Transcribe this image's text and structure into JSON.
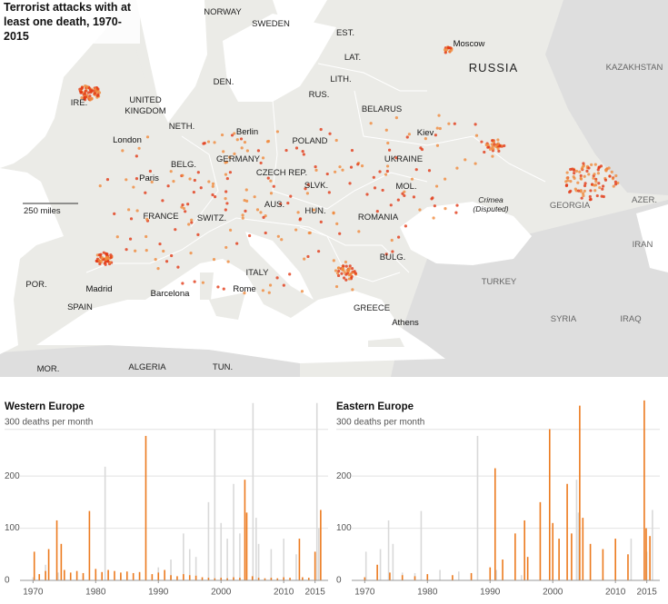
{
  "map": {
    "title": "Terrorist attacks with at least one death, 1970-2015",
    "scale": "250 miles",
    "labels": [
      "NORWAY",
      "SWEDEN",
      "EST.",
      "LAT.",
      "LITH.",
      "RUS.",
      "DEN.",
      "IRE.",
      "UNITED KINGDOM",
      "London",
      "NETH.",
      "Berlin",
      "POLAND",
      "BELARUS",
      "Moscow",
      "RUSSIA",
      "KAZAKHSTAN",
      "Kiev",
      "UKRAINE",
      "BELG.",
      "GERMANY",
      "Paris",
      "CZECH REP.",
      "SLVK.",
      "MOL.",
      "Crimea (Disputed)",
      "AZER.",
      "GEORGIA",
      "FRANCE",
      "SWITZ.",
      "AUS.",
      "HUN.",
      "ROMANIA",
      "IRAN",
      "BULG.",
      "POR.",
      "Madrid",
      "SPAIN",
      "Barcelona",
      "ITALY",
      "Rome",
      "TURKEY",
      "GREECE",
      "SYRIA",
      "IRAQ",
      "Athens",
      "MOR.",
      "ALGERIA",
      "TUN."
    ]
  },
  "chart_data": [
    {
      "type": "bar",
      "title": "Western Europe",
      "xlim": [
        1968.5,
        2016.5
      ],
      "xticks": [
        1970,
        1980,
        1990,
        2000,
        2010,
        2015
      ],
      "ylim": [
        0,
        350
      ],
      "yticks": [
        0,
        100,
        200,
        {
          "value": 300,
          "label": "300 deaths per month"
        }
      ],
      "grid": true,
      "series": [
        {
          "color": "#d9d9d9",
          "x": [
            1970,
            1972,
            1974,
            1976,
            1978,
            1980,
            1981.5,
            1984,
            1987,
            1990,
            1992,
            1994,
            1995,
            1996,
            1998,
            1999,
            2000,
            2001,
            2002,
            2003,
            2005.1,
            2005.6,
            2006,
            2008,
            2010,
            2012,
            2015.3,
            2015.6
          ],
          "values": [
            6,
            30,
            15,
            10,
            8,
            12,
            218,
            10,
            14,
            25,
            40,
            90,
            60,
            45,
            150,
            290,
            110,
            80,
            185,
            90,
            340,
            120,
            70,
            60,
            80,
            50,
            340,
            100
          ]
        },
        {
          "color": "#ec7a1e",
          "x": [
            1970.2,
            1971,
            1972,
            1972.5,
            1973.8,
            1974.5,
            1975,
            1976,
            1977,
            1978,
            1979,
            1980,
            1981,
            1982,
            1983,
            1984,
            1985,
            1986,
            1987,
            1988,
            1989,
            1990,
            1991,
            1992,
            1993,
            1994,
            1995,
            1996,
            1997,
            1998,
            1999,
            2000,
            2001,
            2002,
            2003,
            2003.8,
            2004.1,
            2005,
            2006,
            2007,
            2008,
            2009,
            2010,
            2011,
            2012.5,
            2013,
            2014,
            2015,
            2015.9
          ],
          "values": [
            55,
            12,
            18,
            60,
            115,
            70,
            20,
            15,
            18,
            14,
            133,
            22,
            16,
            20,
            18,
            15,
            17,
            14,
            16,
            277,
            12,
            15,
            20,
            10,
            8,
            12,
            10,
            9,
            6,
            5,
            4,
            5,
            4,
            6,
            5,
            193,
            130,
            8,
            5,
            4,
            5,
            4,
            6,
            5,
            80,
            6,
            5,
            55,
            135
          ]
        }
      ]
    },
    {
      "type": "bar",
      "title": "Eastern Europe",
      "xlim": [
        1968.5,
        2016.5
      ],
      "xticks": [
        1970,
        1980,
        1990,
        2000,
        2010,
        2015
      ],
      "ylim": [
        0,
        350
      ],
      "yticks": [
        0,
        100,
        200,
        {
          "value": 300,
          "label": "300 deaths per month"
        }
      ],
      "grid": true,
      "series": [
        {
          "color": "#d9d9d9",
          "x": [
            1970.2,
            1972.5,
            1973.8,
            1974.5,
            1976,
            1978,
            1979,
            1982,
            1985,
            1988,
            1991,
            1995,
            2000,
            2003.8,
            2004.1,
            2008,
            2012.5,
            2015,
            2015.9
          ],
          "values": [
            55,
            60,
            115,
            70,
            15,
            14,
            133,
            20,
            17,
            277,
            20,
            10,
            5,
            193,
            130,
            5,
            80,
            55,
            135
          ]
        },
        {
          "color": "#ec7a1e",
          "x": [
            1970,
            1972,
            1974,
            1976,
            1978,
            1980,
            1984,
            1987,
            1990,
            1990.8,
            1992,
            1994,
            1995.5,
            1996,
            1998,
            1999.5,
            2000,
            2001,
            2002.3,
            2003,
            2004.3,
            2004.8,
            2006,
            2008,
            2010,
            2012,
            2014.6,
            2014.9,
            2015.5
          ],
          "values": [
            6,
            30,
            15,
            10,
            8,
            12,
            10,
            14,
            25,
            215,
            40,
            90,
            115,
            45,
            150,
            290,
            110,
            80,
            185,
            90,
            335,
            120,
            70,
            60,
            80,
            50,
            345,
            100,
            85
          ]
        }
      ]
    }
  ]
}
